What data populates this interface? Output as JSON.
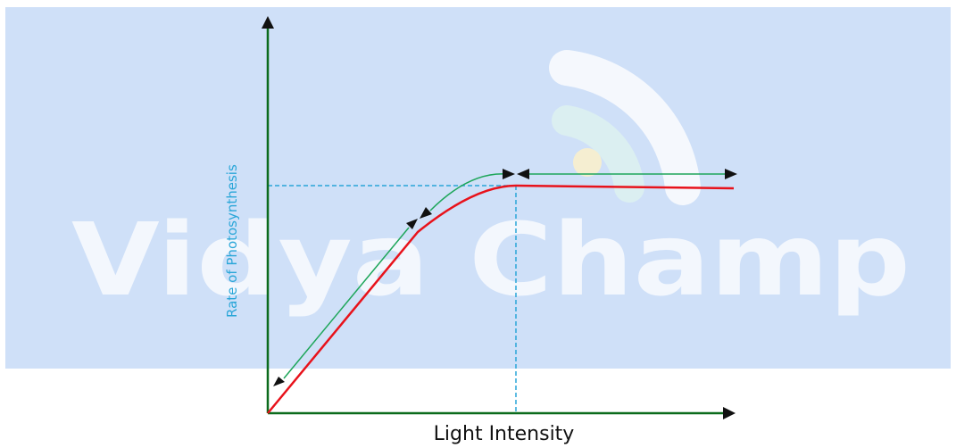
{
  "diagram": {
    "x_axis_label": "Light Intensity",
    "y_axis_label": "Rate of Photosynthesis",
    "watermark_text": "Vidya Champ",
    "colors": {
      "background_band": "#cfe0f8",
      "axes": "#0b6b1c",
      "curve": "#e8121b",
      "annotation_arrows": "#1ea65a",
      "guide_lines": "#2aa6d8",
      "y_label": "#2aa6d8",
      "arrowheads": "#111111"
    }
  }
}
